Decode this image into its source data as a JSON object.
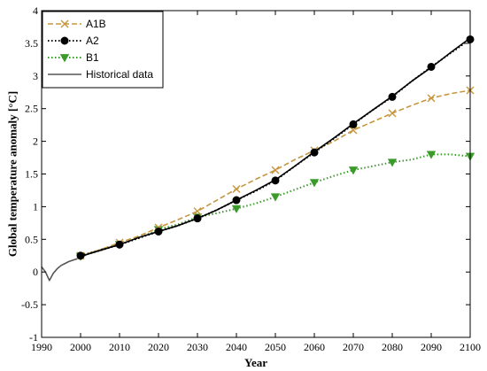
{
  "chart_data": {
    "type": "line",
    "title": "",
    "xlabel": "Year",
    "ylabel": "Global temperature anomaly [°C]",
    "xlim": [
      1990,
      2100
    ],
    "ylim": [
      -1,
      4
    ],
    "xticks": [
      1990,
      2000,
      2010,
      2020,
      2030,
      2040,
      2050,
      2060,
      2070,
      2080,
      2090,
      2100
    ],
    "yticks": [
      -1,
      -0.5,
      0,
      0.5,
      1,
      1.5,
      2,
      2.5,
      3,
      3.5,
      4
    ],
    "ytick_labels": [
      "-1",
      "-0.5",
      "0",
      "0.5",
      "1",
      "1.5",
      "2",
      "2.5",
      "3",
      "3.5",
      "4"
    ],
    "grid": false,
    "legend_position": "top-left",
    "series": [
      {
        "name": "A1B",
        "color": "#c8963c",
        "line_style": "dashed",
        "marker": "x",
        "x": [
          2000,
          2005,
          2010,
          2015,
          2020,
          2025,
          2030,
          2035,
          2040,
          2045,
          2050,
          2055,
          2060,
          2065,
          2070,
          2075,
          2080,
          2085,
          2090,
          2095,
          2100
        ],
        "values": [
          0.25,
          0.34,
          0.45,
          0.55,
          0.68,
          0.8,
          0.93,
          1.1,
          1.27,
          1.42,
          1.56,
          1.72,
          1.86,
          2.0,
          2.17,
          2.3,
          2.43,
          2.55,
          2.66,
          2.73,
          2.78
        ],
        "marker_x": [
          2000,
          2010,
          2020,
          2030,
          2040,
          2050,
          2060,
          2070,
          2080,
          2090,
          2100
        ],
        "marker_values": [
          0.25,
          0.45,
          0.68,
          0.93,
          1.27,
          1.56,
          1.86,
          2.17,
          2.43,
          2.66,
          2.78
        ]
      },
      {
        "name": "A2",
        "color": "#000000",
        "line_style": "dotted",
        "marker": "filled-circle",
        "x": [
          2000,
          2005,
          2010,
          2015,
          2020,
          2025,
          2030,
          2035,
          2040,
          2045,
          2050,
          2055,
          2060,
          2065,
          2070,
          2075,
          2080,
          2085,
          2090,
          2095,
          2100
        ],
        "values": [
          0.25,
          0.33,
          0.42,
          0.52,
          0.62,
          0.71,
          0.82,
          0.95,
          1.1,
          1.24,
          1.4,
          1.62,
          1.83,
          2.04,
          2.26,
          2.48,
          2.68,
          2.92,
          3.14,
          3.35,
          3.56
        ],
        "marker_x": [
          2000,
          2010,
          2020,
          2030,
          2040,
          2050,
          2060,
          2070,
          2080,
          2090,
          2100
        ],
        "marker_values": [
          0.25,
          0.42,
          0.62,
          0.82,
          1.1,
          1.4,
          1.83,
          2.26,
          2.68,
          3.14,
          3.56
        ]
      },
      {
        "name": "B1",
        "color": "#3a9a2a",
        "line_style": "dotted",
        "marker": "triangle-down",
        "x": [
          2000,
          2005,
          2010,
          2015,
          2020,
          2025,
          2030,
          2035,
          2040,
          2045,
          2050,
          2055,
          2060,
          2065,
          2070,
          2075,
          2080,
          2085,
          2090,
          2095,
          2100
        ],
        "values": [
          0.24,
          0.33,
          0.42,
          0.52,
          0.65,
          0.73,
          0.84,
          0.9,
          0.97,
          1.05,
          1.15,
          1.26,
          1.37,
          1.47,
          1.56,
          1.62,
          1.68,
          1.72,
          1.8,
          1.8,
          1.77
        ],
        "marker_x": [
          2000,
          2010,
          2020,
          2030,
          2040,
          2050,
          2060,
          2070,
          2080,
          2090,
          2100
        ],
        "marker_values": [
          0.24,
          0.42,
          0.65,
          0.84,
          0.97,
          1.15,
          1.37,
          1.56,
          1.68,
          1.8,
          1.77
        ]
      },
      {
        "name": "Historical data",
        "color": "#555555",
        "line_style": "solid",
        "marker": "none",
        "x": [
          1990,
          1991,
          1992,
          1993,
          1994,
          1995,
          1996,
          1997,
          1998,
          1999,
          2000,
          2001,
          2002,
          2003,
          2004,
          2005,
          2006,
          2007,
          2008,
          2009,
          2010
        ],
        "values": [
          0.08,
          0.0,
          -0.13,
          -0.02,
          0.05,
          0.1,
          0.13,
          0.16,
          0.18,
          0.2,
          0.22,
          0.25,
          0.28,
          0.3,
          0.32,
          0.34,
          0.36,
          0.37,
          0.39,
          0.4,
          0.42
        ]
      },
      {
        "name": "",
        "color": "#000000",
        "line_style": "solid",
        "marker": "none",
        "x": [
          2000,
          2005,
          2010,
          2015,
          2020,
          2025,
          2030,
          2035,
          2040,
          2045,
          2050,
          2055,
          2060,
          2065,
          2070,
          2075,
          2080,
          2085,
          2090,
          2095,
          2100
        ],
        "values": [
          0.24,
          0.33,
          0.42,
          0.53,
          0.62,
          0.71,
          0.82,
          0.95,
          1.1,
          1.25,
          1.41,
          1.62,
          1.84,
          2.05,
          2.27,
          2.48,
          2.69,
          2.92,
          3.13,
          3.36,
          3.58
        ]
      }
    ],
    "legend": [
      {
        "label": "A1B",
        "series_index": 0
      },
      {
        "label": "A2",
        "series_index": 1
      },
      {
        "label": "B1",
        "series_index": 2
      },
      {
        "label": "Historical data",
        "series_index": 3
      }
    ]
  }
}
